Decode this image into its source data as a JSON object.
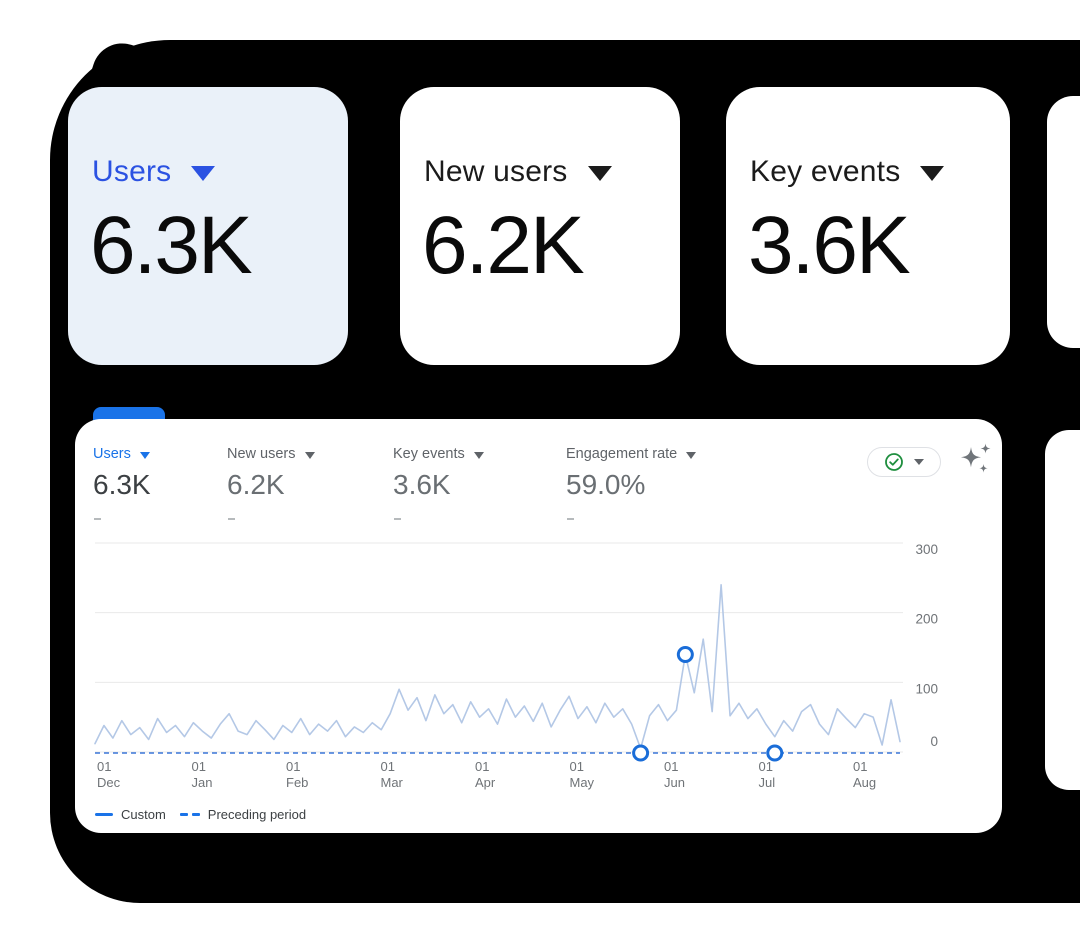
{
  "colors": {
    "backdrop": "#000000",
    "selected_card_bg": "#eaf1f9",
    "selected_blue": "#2b52e2",
    "ga_blue": "#1a73e8",
    "line_blue_pale": "#b4c8e6",
    "dashed_blue": "#3b77d8",
    "marker_blue": "#1a6dd8",
    "check_green": "#1e8e3e",
    "grid_gray": "#e9e9e9",
    "axis_text": "#6f7377",
    "muted_text": "#5f6368"
  },
  "cards": [
    {
      "label": "Users",
      "value": "6.3K",
      "selected": true
    },
    {
      "label": "New users",
      "value": "6.2K",
      "selected": false
    },
    {
      "label": "Key events",
      "value": "3.6K",
      "selected": false
    }
  ],
  "panel": {
    "metrics": [
      {
        "label": "Users",
        "value": "6.3K",
        "sub": "-",
        "selected": true
      },
      {
        "label": "New users",
        "value": "6.2K",
        "sub": "-",
        "selected": false
      },
      {
        "label": "Key events",
        "value": "3.6K",
        "sub": "-",
        "selected": false
      },
      {
        "label": "Engagement rate",
        "value": "59.0%",
        "sub": "-",
        "selected": false
      }
    ],
    "toolbar": {
      "status_icon": "check-circle",
      "insights_icon": "sparkle"
    },
    "legend": [
      {
        "label": "Custom",
        "style": "solid"
      },
      {
        "label": "Preceding period",
        "style": "dashed"
      }
    ]
  },
  "chart_data": {
    "type": "line",
    "title": "",
    "xlabel": "",
    "ylabel": "",
    "x_ticks": [
      "01 Dec",
      "01 Jan",
      "01 Feb",
      "01 Mar",
      "01 Apr",
      "01 May",
      "01 Jun",
      "01 Jul",
      "01 Aug"
    ],
    "y_ticks": [
      0,
      100,
      200,
      300
    ],
    "y_axis_side": "right",
    "ylim": [
      0,
      300
    ],
    "grid": true,
    "legend_position": "bottom-left",
    "series": [
      {
        "name": "Custom",
        "style": "solid",
        "values": [
          12,
          38,
          20,
          45,
          25,
          35,
          18,
          48,
          28,
          38,
          22,
          42,
          30,
          20,
          40,
          55,
          30,
          25,
          45,
          32,
          18,
          38,
          28,
          48,
          25,
          40,
          30,
          45,
          22,
          36,
          28,
          42,
          32,
          55,
          90,
          60,
          78,
          45,
          82,
          55,
          68,
          42,
          72,
          50,
          62,
          40,
          76,
          50,
          66,
          44,
          70,
          36,
          60,
          80,
          48,
          65,
          42,
          70,
          50,
          62,
          40,
          5,
          52,
          68,
          45,
          60,
          140,
          85,
          162,
          58,
          240,
          52,
          70,
          48,
          62,
          40,
          22,
          45,
          30,
          58,
          68,
          40,
          25,
          62,
          48,
          35,
          55,
          50,
          10,
          75,
          15
        ]
      },
      {
        "name": "Preceding period",
        "style": "dashed",
        "constant_value": 0
      }
    ],
    "markers": [
      {
        "series": "Custom",
        "index": 66,
        "value": 140
      },
      {
        "series": "Preceding period",
        "index": 61,
        "value": 0
      },
      {
        "series": "Preceding period",
        "index": 76,
        "value": 0
      }
    ]
  }
}
